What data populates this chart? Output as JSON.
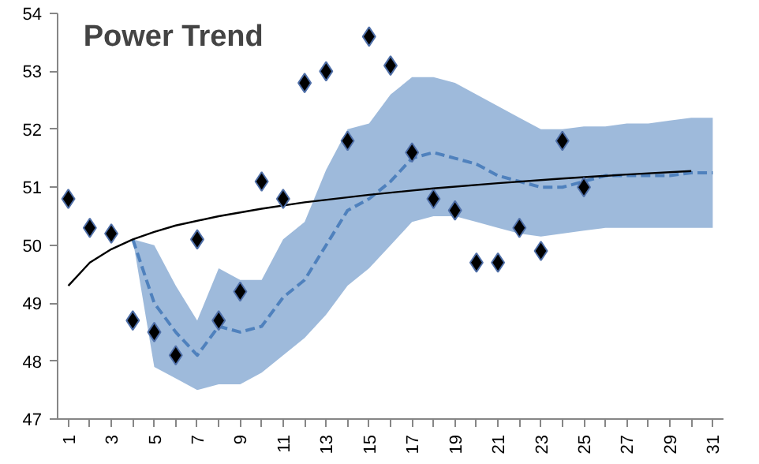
{
  "chart_data": {
    "type": "scatter",
    "title": "Power Trend",
    "xlim": [
      0.5,
      31.5
    ],
    "ylim": [
      47,
      54
    ],
    "xticks": [
      1,
      {
        "value": 2,
        "label": null
      },
      3,
      {
        "value": 4,
        "label": null
      },
      5,
      {
        "value": 6,
        "label": null
      },
      7,
      {
        "value": 8,
        "label": null
      },
      9,
      {
        "value": 10,
        "label": null
      },
      11,
      {
        "value": 12,
        "label": null
      },
      13,
      {
        "value": 14,
        "label": null
      },
      15,
      {
        "value": 16,
        "label": null
      },
      17,
      {
        "value": 18,
        "label": null
      },
      19,
      {
        "value": 20,
        "label": null
      },
      21,
      {
        "value": 22,
        "label": null
      },
      23,
      {
        "value": 24,
        "label": null
      },
      25,
      {
        "value": 26,
        "label": null
      },
      27,
      {
        "value": 28,
        "label": null
      },
      29,
      {
        "value": 30,
        "label": null
      },
      31
    ],
    "yticks": [
      47,
      48,
      49,
      50,
      51,
      52,
      53,
      54
    ],
    "grid": false,
    "series": [
      {
        "type": "line",
        "color": "#4f81bd",
        "line_style": "dashed",
        "marker": "none",
        "x": [
          4,
          5,
          6,
          7,
          8,
          9,
          10,
          11,
          12,
          13,
          14,
          15,
          16,
          17,
          18,
          19,
          20,
          21,
          22,
          23,
          24,
          25,
          26,
          27,
          28,
          29,
          30,
          31
        ],
        "values": [
          50.1,
          49.0,
          48.5,
          48.1,
          48.6,
          48.5,
          48.6,
          49.1,
          49.4,
          50.0,
          50.6,
          50.8,
          51.1,
          51.5,
          51.6,
          51.5,
          51.4,
          51.2,
          51.1,
          51.0,
          51.0,
          51.1,
          51.2,
          51.2,
          51.2,
          51.2,
          51.25,
          51.25
        ],
        "upper": [
          50.1,
          50.0,
          49.3,
          48.7,
          49.6,
          49.4,
          49.4,
          50.1,
          50.4,
          51.3,
          52.0,
          52.1,
          52.6,
          52.9,
          52.9,
          52.8,
          52.6,
          52.4,
          52.2,
          52.0,
          52.0,
          52.05,
          52.05,
          52.1,
          52.1,
          52.15,
          52.2,
          52.2
        ],
        "lower": [
          50.1,
          47.9,
          47.7,
          47.5,
          47.6,
          47.6,
          47.8,
          48.1,
          48.4,
          48.8,
          49.3,
          49.6,
          50.0,
          50.4,
          50.5,
          50.5,
          50.4,
          50.3,
          50.2,
          50.15,
          50.2,
          50.25,
          50.3,
          50.3,
          50.3,
          50.3,
          50.3,
          50.3
        ]
      },
      {
        "type": "line",
        "color": "#000000",
        "line_style": "solid",
        "marker": "none",
        "x": [
          1,
          2,
          3,
          4,
          5,
          6,
          8,
          10,
          12,
          15,
          18,
          21,
          24,
          27,
          30
        ],
        "values": [
          49.3,
          49.7,
          49.93,
          50.1,
          50.23,
          50.34,
          50.5,
          50.63,
          50.74,
          50.87,
          50.98,
          51.07,
          51.15,
          51.22,
          51.28
        ]
      },
      {
        "color": "#000000",
        "marker": "diamond",
        "x": [
          1,
          2,
          3,
          4,
          5,
          6,
          7,
          8,
          9,
          10,
          11,
          12,
          13,
          14,
          15,
          16,
          17,
          18,
          19,
          20,
          21,
          22,
          23,
          24,
          25
        ],
        "values": [
          50.8,
          50.3,
          50.2,
          48.7,
          48.5,
          48.1,
          50.1,
          48.7,
          49.2,
          51.1,
          50.8,
          52.8,
          53.0,
          51.8,
          53.6,
          53.1,
          51.6,
          50.8,
          50.6,
          49.7,
          49.7,
          50.3,
          49.9,
          51.8,
          51.0
        ]
      }
    ]
  }
}
